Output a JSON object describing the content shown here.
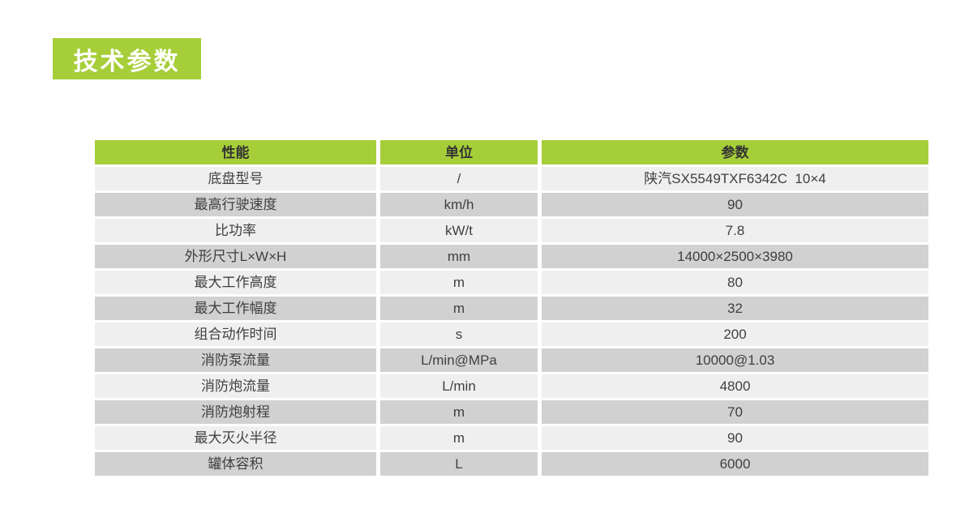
{
  "page_title": {
    "label": "技术参数"
  },
  "colors": {
    "green": "#a6ce39",
    "row_light": "#efefef",
    "row_dark": "#d1d1d1",
    "cell_text": "#3f3f3f",
    "header_text": "#333333",
    "title_text": "#ffffff",
    "background": "#ffffff"
  },
  "table": {
    "columns": [
      "性能",
      "单位",
      "参数"
    ],
    "rows": [
      {
        "name": "底盘型号",
        "unit": "/",
        "value": "陕汽SX5549TXF6342C  10×4"
      },
      {
        "name": "最高行驶速度",
        "unit": "km/h",
        "value": "90"
      },
      {
        "name": "比功率",
        "unit": "kW/t",
        "value": "7.8"
      },
      {
        "name": "外形尺寸L×W×H",
        "unit": "mm",
        "value": "14000×2500×3980"
      },
      {
        "name": "最大工作高度",
        "unit": "m",
        "value": "80"
      },
      {
        "name": "最大工作幅度",
        "unit": "m",
        "value": "32"
      },
      {
        "name": "组合动作时间",
        "unit": "s",
        "value": "200"
      },
      {
        "name": "消防泵流量",
        "unit": "L/min@MPa",
        "value": "10000@1.03"
      },
      {
        "name": "消防炮流量",
        "unit": "L/min",
        "value": "4800"
      },
      {
        "name": "消防炮射程",
        "unit": "m",
        "value": "70"
      },
      {
        "name": "最大灭火半径",
        "unit": "m",
        "value": "90"
      },
      {
        "name": "罐体容积",
        "unit": "L",
        "value": "6000"
      }
    ]
  }
}
